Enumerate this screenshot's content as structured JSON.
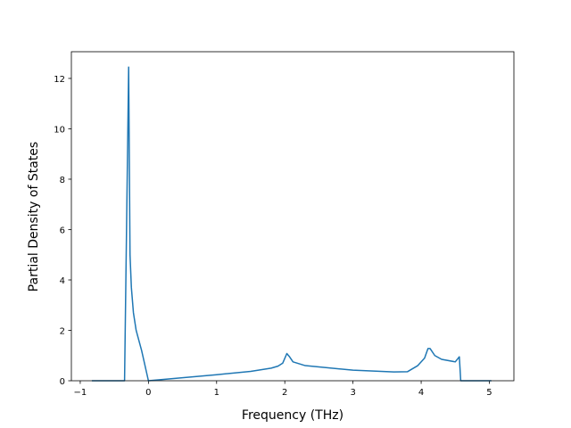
{
  "chart_data": {
    "type": "line",
    "x_label": "Frequency (THz)",
    "y_label": "Partial Density of States",
    "x": [
      -0.83,
      -0.35,
      -0.29,
      -0.27,
      -0.25,
      -0.22,
      -0.18,
      -0.1,
      0,
      0.5,
      1.0,
      1.5,
      1.8,
      1.9,
      1.97,
      2.03,
      2.07,
      2.12,
      2.3,
      3.0,
      3.6,
      3.8,
      3.95,
      4.05,
      4.1,
      4.13,
      4.2,
      4.3,
      4.5,
      4.56,
      4.58,
      5.03
    ],
    "series": [
      {
        "color": "#1f77b4",
        "values": [
          0,
          0,
          12.45,
          5.0,
          3.7,
          2.7,
          2.0,
          1.2,
          0,
          0.12,
          0.24,
          0.37,
          0.5,
          0.58,
          0.7,
          1.08,
          0.95,
          0.75,
          0.6,
          0.42,
          0.35,
          0.36,
          0.6,
          0.9,
          1.28,
          1.28,
          1.0,
          0.85,
          0.75,
          0.95,
          0,
          0
        ]
      }
    ],
    "xlim": [
      -1.13,
      5.36
    ],
    "ylim": [
      0,
      13.06
    ],
    "xticks": [
      {
        "value": -1,
        "label": "−1"
      },
      0,
      1,
      2,
      3,
      4,
      5
    ],
    "yticks": [
      0,
      2,
      4,
      6,
      8,
      10,
      12
    ]
  }
}
